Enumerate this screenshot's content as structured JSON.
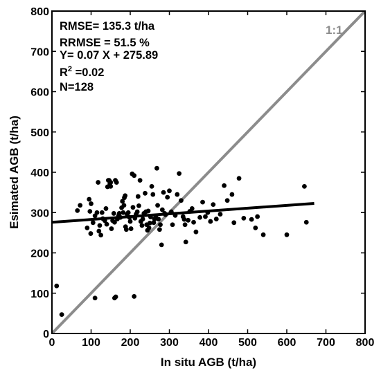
{
  "chart_data": {
    "type": "scatter",
    "title": "",
    "xlabel": "In situ AGB (t/ha)",
    "ylabel": "Esimated AGB (t/ha)",
    "xlim": [
      0,
      800
    ],
    "ylim": [
      0,
      800
    ],
    "x_ticks": [
      0,
      100,
      200,
      300,
      400,
      500,
      600,
      700,
      800
    ],
    "y_ticks": [
      0,
      100,
      200,
      300,
      400,
      500,
      600,
      700,
      800
    ],
    "grid": false,
    "stats": {
      "rmse": "RMSE= 135.3 t/ha",
      "rrmse": "RRMSE = 51.5 %",
      "equation": "Y= 0.07 X + 275.89",
      "r2_main": "R",
      "r2_sup": "2",
      "r2_value": " =0.02",
      "n": "N=128"
    },
    "reference_line": {
      "label": "1:1",
      "slope": 1,
      "intercept": 0,
      "x_range": [
        0,
        800
      ],
      "color": "#8c8c8c"
    },
    "regression_line": {
      "slope": 0.07,
      "intercept": 275.89,
      "x_range": [
        0,
        670
      ],
      "color": "#000000"
    },
    "series": [
      {
        "color": "#000000",
        "points": [
          [
            12,
            118
          ],
          [
            25,
            47
          ],
          [
            110,
            88
          ],
          [
            160,
            88
          ],
          [
            163,
            91
          ],
          [
            210,
            92
          ],
          [
            65,
            305
          ],
          [
            72,
            318
          ],
          [
            90,
            262
          ],
          [
            95,
            333
          ],
          [
            97,
            303
          ],
          [
            99,
            248
          ],
          [
            100,
            322
          ],
          [
            105,
            275
          ],
          [
            110,
            292
          ],
          [
            115,
            300
          ],
          [
            118,
            375
          ],
          [
            120,
            254
          ],
          [
            122,
            268
          ],
          [
            125,
            244
          ],
          [
            128,
            300
          ],
          [
            130,
            285
          ],
          [
            135,
            280
          ],
          [
            138,
            310
          ],
          [
            140,
            271
          ],
          [
            142,
            364
          ],
          [
            144,
            380
          ],
          [
            146,
            380
          ],
          [
            148,
            371
          ],
          [
            150,
            375
          ],
          [
            150,
            365
          ],
          [
            152,
            260
          ],
          [
            155,
            280
          ],
          [
            158,
            298
          ],
          [
            160,
            276
          ],
          [
            162,
            380
          ],
          [
            165,
            375
          ],
          [
            167,
            284
          ],
          [
            170,
            292
          ],
          [
            172,
            298
          ],
          [
            175,
            288
          ],
          [
            178,
            312
          ],
          [
            180,
            328
          ],
          [
            182,
            300
          ],
          [
            184,
            318
          ],
          [
            185,
            337
          ],
          [
            187,
            342
          ],
          [
            188,
            265
          ],
          [
            190,
            258
          ],
          [
            192,
            296
          ],
          [
            195,
            300
          ],
          [
            198,
            288
          ],
          [
            200,
            278
          ],
          [
            202,
            260
          ],
          [
            205,
            396
          ],
          [
            207,
            313
          ],
          [
            210,
            392
          ],
          [
            212,
            286
          ],
          [
            215,
            296
          ],
          [
            218,
            302
          ],
          [
            220,
            340
          ],
          [
            222,
            317
          ],
          [
            225,
            380
          ],
          [
            227,
            278
          ],
          [
            230,
            268
          ],
          [
            232,
            284
          ],
          [
            235,
            298
          ],
          [
            238,
            348
          ],
          [
            240,
            302
          ],
          [
            242,
            270
          ],
          [
            244,
            256
          ],
          [
            246,
            304
          ],
          [
            248,
            262
          ],
          [
            250,
            274
          ],
          [
            252,
            289
          ],
          [
            255,
            365
          ],
          [
            258,
            345
          ],
          [
            260,
            275
          ],
          [
            262,
            284
          ],
          [
            265,
            292
          ],
          [
            268,
            410
          ],
          [
            270,
            318
          ],
          [
            272,
            284
          ],
          [
            275,
            258
          ],
          [
            277,
            270
          ],
          [
            280,
            220
          ],
          [
            282,
            307
          ],
          [
            285,
            350
          ],
          [
            288,
            298
          ],
          [
            290,
            295
          ],
          [
            295,
            338
          ],
          [
            300,
            354
          ],
          [
            305,
            302
          ],
          [
            308,
            270
          ],
          [
            315,
            293
          ],
          [
            320,
            345
          ],
          [
            325,
            397
          ],
          [
            330,
            330
          ],
          [
            335,
            290
          ],
          [
            338,
            283
          ],
          [
            340,
            270
          ],
          [
            342,
            227
          ],
          [
            348,
            281
          ],
          [
            352,
            303
          ],
          [
            358,
            310
          ],
          [
            362,
            276
          ],
          [
            368,
            252
          ],
          [
            378,
            288
          ],
          [
            385,
            326
          ],
          [
            392,
            290
          ],
          [
            398,
            300
          ],
          [
            405,
            278
          ],
          [
            412,
            320
          ],
          [
            420,
            284
          ],
          [
            430,
            296
          ],
          [
            440,
            367
          ],
          [
            448,
            330
          ],
          [
            460,
            345
          ],
          [
            465,
            275
          ],
          [
            478,
            385
          ],
          [
            490,
            286
          ],
          [
            510,
            283
          ],
          [
            520,
            262
          ],
          [
            525,
            290
          ],
          [
            540,
            245
          ],
          [
            600,
            245
          ],
          [
            645,
            365
          ],
          [
            650,
            276
          ]
        ]
      }
    ]
  }
}
